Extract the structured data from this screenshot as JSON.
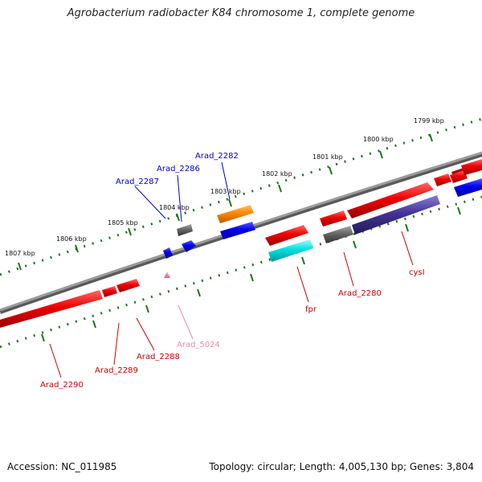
{
  "title": "Agrobacterium radiobacter K84 chromosome 1, complete genome",
  "footer": {
    "accession": "Accession: NC_011985",
    "topology": "Topology: circular; Length: 4,005,130 bp; Genes: 3,804"
  },
  "scale_labels": [
    "1799 kbp",
    "1800 kbp",
    "1801 kbp",
    "1802 kbp",
    "1803 kbp",
    "1804 kbp",
    "1805 kbp",
    "1806 kbp",
    "1807 kbp"
  ],
  "genes_top": [
    {
      "name": "Arad_2282",
      "color": "#0000cc"
    },
    {
      "name": "Arad_2286",
      "color": "#0000cc"
    },
    {
      "name": "Arad_2287",
      "color": "#0000cc"
    }
  ],
  "genes_bottom": [
    {
      "name": "Arad_2290",
      "color": "#cc0000"
    },
    {
      "name": "Arad_2289",
      "color": "#cc0000"
    },
    {
      "name": "Arad_2288",
      "color": "#cc0000"
    },
    {
      "name": "Arad_5024",
      "color": "#ee88aa"
    },
    {
      "name": "fpr",
      "color": "#cc0000"
    },
    {
      "name": "Arad_2280",
      "color": "#cc0000"
    },
    {
      "name": "cysI",
      "color": "#cc0000"
    }
  ],
  "colors": {
    "backbone": "#8a8a8a",
    "tick": "#1a7a1a",
    "cds_red": "#ee0000",
    "cds_blue": "#0000ee",
    "cds_orange": "#ff8800",
    "cds_cyan": "#00e0e0",
    "cds_gray": "#666666",
    "cds_purple": "#443399",
    "pseudo_pink": "#ee88aa"
  }
}
